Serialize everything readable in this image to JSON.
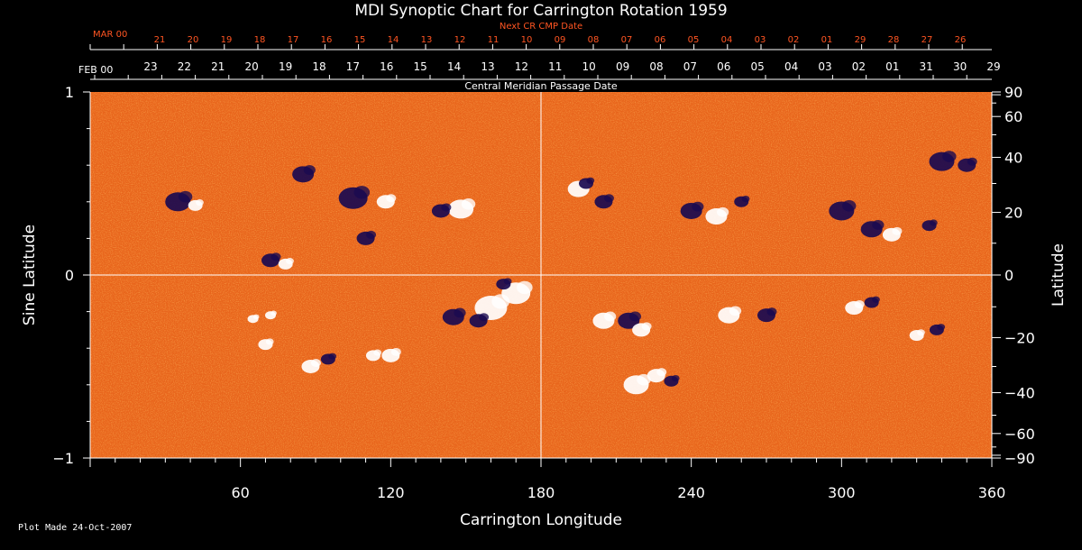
{
  "chart_data": {
    "type": "heatmap",
    "title": "MDI Synoptic Chart for Carrington Rotation 1959",
    "xlabel": "Carrington Longitude",
    "ylabel_left": "Sine Latitude",
    "ylabel_right": "Latitude",
    "xlim": [
      0,
      360
    ],
    "ylim": [
      -1,
      1
    ],
    "x_ticks": [
      60,
      120,
      180,
      240,
      300,
      360
    ],
    "y_ticks_left": [
      {
        "value": 1,
        "label": "1"
      },
      {
        "value": 0,
        "label": "0"
      },
      {
        "value": -1,
        "label": "−1"
      }
    ],
    "y_ticks_right": [
      {
        "lat": 90,
        "label": "90"
      },
      {
        "lat": 60,
        "label": "60"
      },
      {
        "lat": 40,
        "label": "40"
      },
      {
        "lat": 20,
        "label": "20"
      },
      {
        "lat": 0,
        "label": "0"
      },
      {
        "lat": -20,
        "label": "−20"
      },
      {
        "lat": -40,
        "label": "−40"
      },
      {
        "lat": -60,
        "label": "−60"
      },
      {
        "lat": -90,
        "label": "−90"
      }
    ],
    "cmp_axis": {
      "start_label": "FEB 00",
      "title": "Central Meridian Passage Date",
      "dates": [
        "23",
        "22",
        "21",
        "20",
        "19",
        "18",
        "17",
        "16",
        "15",
        "14",
        "13",
        "12",
        "11",
        "10",
        "09",
        "08",
        "07",
        "06",
        "05",
        "04",
        "03",
        "02",
        "01",
        "31",
        "30",
        "29"
      ]
    },
    "next_cmp_axis": {
      "start_label": "MAR 00",
      "title": "Next CR CMP Date",
      "dates": [
        "21",
        "20",
        "19",
        "18",
        "17",
        "16",
        "15",
        "14",
        "13",
        "12",
        "11",
        "10",
        "09",
        "08",
        "07",
        "06",
        "05",
        "04",
        "03",
        "02",
        "01",
        "29",
        "28",
        "27",
        "26"
      ]
    },
    "colors": {
      "background_field": "#ee6a1a",
      "positive": "#ffffff",
      "negative": "#1a0a50",
      "next_axis": "#ff5522"
    }
  },
  "footer": "Plot Made 24-Oct-2007"
}
